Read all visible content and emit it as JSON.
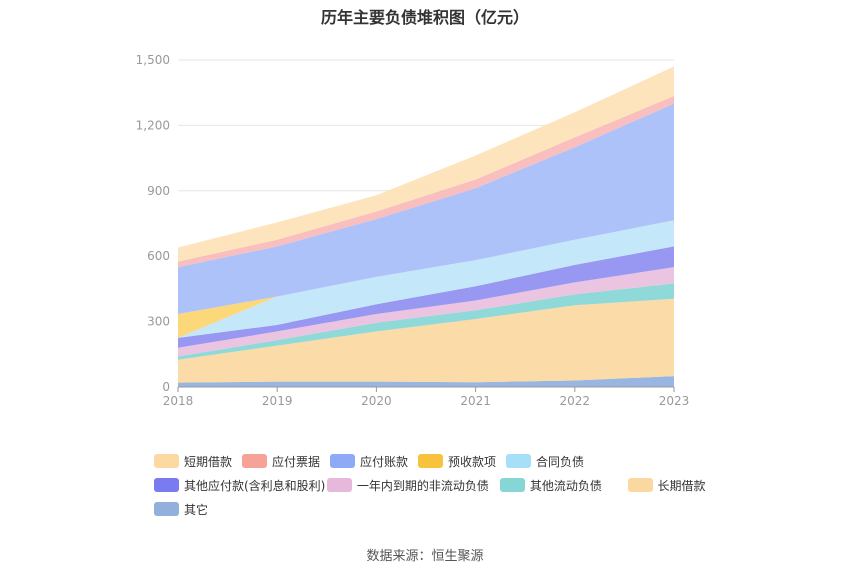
{
  "chart_data": {
    "type": "area",
    "title": "历年主要负债堆积图（亿元）",
    "stacked": true,
    "x": [
      "2018",
      "2019",
      "2020",
      "2021",
      "2022",
      "2023"
    ],
    "ylim": [
      0,
      1500
    ],
    "yticks": [
      "0",
      "300",
      "600",
      "900",
      "1,200",
      "1,500"
    ],
    "grid": true,
    "legend_position": "bottom",
    "series": [
      {
        "name": "其它",
        "color": "#8fb0de",
        "values": [
          20,
          25,
          25,
          22,
          30,
          50
        ]
      },
      {
        "name": "长期借款",
        "color": "#fbd8a0",
        "values": [
          105,
          165,
          230,
          290,
          345,
          355
        ]
      },
      {
        "name": "其他流动负债",
        "color": "#86d6d6",
        "values": [
          15,
          25,
          40,
          40,
          50,
          70
        ]
      },
      {
        "name": "一年内到期的非流动负债",
        "color": "#e8bfde",
        "values": [
          40,
          40,
          40,
          45,
          55,
          75
        ]
      },
      {
        "name": "其他应付款(含利息和股利)",
        "color": "#8f8ff2",
        "values": [
          45,
          30,
          45,
          65,
          80,
          95
        ]
      },
      {
        "name": "合同负债",
        "color": "#bfe6f9",
        "values": [
          0,
          130,
          125,
          120,
          115,
          120
        ]
      },
      {
        "name": "预收款项",
        "color": "#fcd570",
        "values": [
          110,
          0,
          0,
          0,
          0,
          0
        ]
      },
      {
        "name": "应付账款",
        "color": "#a7bdfa",
        "values": [
          215,
          230,
          265,
          330,
          425,
          535
        ]
      },
      {
        "name": "应付票据",
        "color": "#f9b8b8",
        "values": [
          25,
          30,
          35,
          40,
          45,
          35
        ]
      },
      {
        "name": "短期借款",
        "color": "#fde2b6",
        "values": [
          65,
          80,
          75,
          110,
          115,
          135
        ]
      }
    ]
  },
  "legend": [
    [
      {
        "label": "短期借款",
        "color": "#fcd9a3"
      },
      {
        "label": "应付票据",
        "color": "#f6a297"
      },
      {
        "label": "应付账款",
        "color": "#8ea9f6"
      },
      {
        "label": "预收款项",
        "color": "#f9c23c"
      },
      {
        "label": "合同负债",
        "color": "#a7dff8"
      }
    ],
    [
      {
        "label": "其他应付款(含利息和股利)",
        "color": "#7b7bf1"
      },
      {
        "label": "一年内到期的非流动负债",
        "color": "#e6b8dc"
      },
      {
        "label": "其他流动负债",
        "color": "#86d6d6"
      },
      {
        "label": "长期借款",
        "color": "#fbd8a0"
      }
    ],
    [
      {
        "label": "其它",
        "color": "#93afdc"
      }
    ]
  ],
  "source": "数据来源：恒生聚源"
}
